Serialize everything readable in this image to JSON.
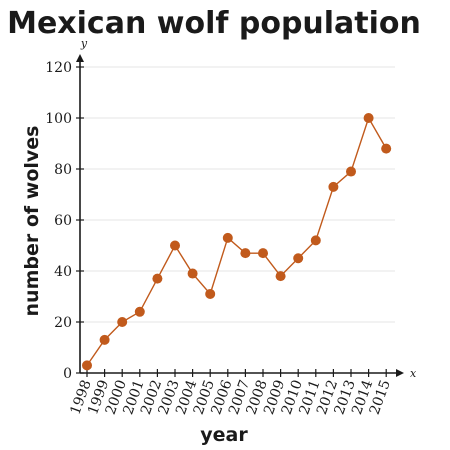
{
  "chart_data": {
    "type": "line",
    "title": "Mexican wolf population",
    "xlabel": "year",
    "ylabel": "number of wolves",
    "x_axis_var": "x",
    "y_axis_var": "y",
    "categories": [
      "1998",
      "1999",
      "2000",
      "2001",
      "2002",
      "2003",
      "2004",
      "2005",
      "2006",
      "2007",
      "2008",
      "2009",
      "2010",
      "2011",
      "2012",
      "2013",
      "2014",
      "2015"
    ],
    "series": [
      {
        "values": [
          3,
          13,
          20,
          24,
          37,
          50,
          39,
          31,
          53,
          47,
          47,
          38,
          45,
          52,
          73,
          79,
          100,
          88
        ]
      }
    ],
    "ylim": [
      0,
      120
    ],
    "yticks": [
      "0",
      "20",
      "40",
      "60",
      "80",
      "100",
      "120"
    ],
    "grid": true,
    "legend": "none",
    "color": "#c15a1c"
  }
}
